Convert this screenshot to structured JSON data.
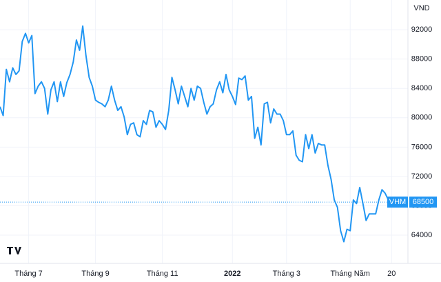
{
  "chart_data": {
    "type": "line",
    "y_unit": "VND",
    "categories": [
      null,
      null,
      null,
      null,
      null,
      null,
      null,
      null,
      null,
      "Tháng 7",
      null,
      null,
      null,
      null,
      null,
      null,
      null,
      null,
      null,
      null,
      null,
      null,
      null,
      null,
      null,
      null,
      null,
      null,
      null,
      null,
      "Tháng 9",
      null,
      null,
      null,
      null,
      null,
      null,
      null,
      null,
      null,
      null,
      null,
      null,
      null,
      null,
      null,
      null,
      null,
      null,
      null,
      null,
      "Tháng 11",
      null,
      null,
      null,
      null,
      null,
      null,
      null,
      null,
      null,
      null,
      null,
      null,
      null,
      null,
      null,
      null,
      null,
      null,
      null,
      null,
      null,
      "2022",
      null,
      null,
      null,
      null,
      null,
      null,
      null,
      null,
      null,
      null,
      null,
      null,
      null,
      null,
      null,
      null,
      "Tháng 3",
      null,
      null,
      null,
      null,
      null,
      null,
      null,
      null,
      null,
      null,
      null,
      null,
      null,
      null,
      null,
      null,
      null,
      null,
      null,
      "Tháng Năm",
      null,
      null,
      null,
      null,
      null,
      null,
      null,
      null,
      null,
      null,
      null,
      null,
      "20"
    ],
    "series": [
      {
        "name": "VHM",
        "color": "#2196f3",
        "values": [
          81500,
          80300,
          86600,
          84900,
          86800,
          85900,
          86400,
          90400,
          91500,
          90200,
          91200,
          83300,
          84300,
          84900,
          84000,
          80500,
          83800,
          84900,
          82200,
          84900,
          82900,
          84800,
          85900,
          87600,
          90600,
          89200,
          92500,
          88500,
          85500,
          84300,
          82400,
          82100,
          81900,
          81500,
          82400,
          84300,
          82400,
          81000,
          81500,
          80100,
          77700,
          79100,
          79300,
          77700,
          77400,
          79600,
          79100,
          81000,
          80800,
          78700,
          79600,
          79100,
          78400,
          81000,
          85500,
          83800,
          81900,
          84300,
          82900,
          81500,
          84000,
          82400,
          84300,
          84000,
          82100,
          80500,
          81500,
          81900,
          83800,
          84900,
          83400,
          85900,
          83800,
          82900,
          81800,
          85400,
          85200,
          85700,
          82400,
          82900,
          77200,
          78700,
          76300,
          81900,
          82100,
          79300,
          81200,
          80500,
          80500,
          79600,
          77700,
          77700,
          78200,
          74900,
          74200,
          74000,
          77700,
          75800,
          77700,
          75200,
          76500,
          76300,
          76300,
          73500,
          71600,
          68800,
          67800,
          64600,
          63100,
          64800,
          64600,
          68800,
          68300,
          70500,
          68300,
          66000,
          66900,
          66900,
          66900,
          68800,
          70200,
          69700,
          68800,
          68500
        ]
      }
    ],
    "ylim": [
      60150,
      96050
    ],
    "yticks": [
      64000,
      68000,
      72000,
      76000,
      80000,
      84000,
      88000,
      92000
    ],
    "grid": true
  }
}
